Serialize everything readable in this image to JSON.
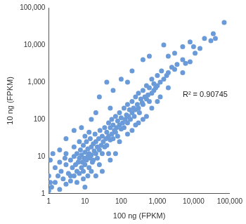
{
  "chart_data": {
    "type": "scatter",
    "x_label": "100 ng (FPKM)",
    "y_label": "10 ng (FPKM)",
    "annotation": "R² = 0.90745",
    "color": "#6a9bd8",
    "log": true,
    "grid": false,
    "xlim": [
      1,
      100000
    ],
    "ylim": [
      1,
      100000
    ],
    "xticks": [
      1,
      10,
      100,
      {
        "value": 1000,
        "label": "1,000"
      },
      {
        "value": 10000,
        "label": "10,000"
      },
      {
        "value": 100000,
        "label": "100,000"
      }
    ],
    "yticks": [
      1,
      10,
      100,
      {
        "value": 1000,
        "label": "1,000"
      },
      {
        "value": 10000,
        "label": "10,000"
      },
      {
        "value": 100000,
        "label": "100,000"
      }
    ],
    "x": [
      1.2,
      1.5,
      1.8,
      2,
      2.2,
      2.5,
      3,
      3,
      3.5,
      4,
      4,
      4.5,
      5,
      5,
      5.5,
      6,
      6,
      6.5,
      7,
      7,
      7.5,
      8,
      8,
      8.5,
      9,
      9,
      9.5,
      10,
      10,
      11,
      11,
      12,
      12,
      13,
      13,
      14,
      14,
      15,
      15,
      16,
      17,
      18,
      19,
      20,
      20,
      22,
      22,
      24,
      25,
      26,
      28,
      30,
      30,
      32,
      35,
      35,
      38,
      40,
      40,
      45,
      45,
      50,
      50,
      55,
      55,
      60,
      60,
      65,
      70,
      70,
      75,
      80,
      80,
      90,
      90,
      100,
      100,
      110,
      120,
      120,
      130,
      140,
      150,
      150,
      160,
      170,
      180,
      200,
      200,
      220,
      230,
      250,
      250,
      280,
      300,
      300,
      320,
      350,
      380,
      400,
      400,
      450,
      500,
      500,
      550,
      600,
      600,
      700,
      700,
      800,
      800,
      900,
      1000,
      1000,
      1200,
      1300,
      1500,
      1800,
      2000,
      2500,
      3000,
      3500,
      5000,
      6000,
      8000,
      10000,
      11000,
      15000,
      30000,
      35000,
      70000,
      3,
      5,
      8,
      15,
      20,
      25,
      40,
      50,
      60,
      100,
      150,
      200,
      400,
      600,
      1500,
      2000,
      3000,
      200,
      300,
      500,
      1000,
      30,
      50,
      70,
      10,
      20,
      1.1,
      1.3,
      2,
      1.5,
      1,
      1,
      1.1,
      2,
      3,
      4,
      6,
      9,
      12,
      15,
      2.8,
      5,
      7,
      10,
      13,
      17,
      25,
      45,
      90,
      150,
      250,
      400,
      700,
      1200,
      2000,
      5000,
      5000,
      8000,
      20000,
      40000
    ],
    "values": [
      1.5,
      2,
      3,
      1.3,
      4,
      2.5,
      6,
      1.8,
      3.5,
      8,
      2.2,
      5,
      3,
      10,
      6,
      4,
      12,
      7,
      3.5,
      9,
      15,
      5,
      11,
      7,
      20,
      4,
      9,
      13,
      6,
      25,
      8,
      10,
      16,
      5,
      12,
      30,
      9,
      18,
      11,
      7,
      22,
      14,
      40,
      12,
      25,
      9,
      18,
      30,
      15,
      50,
      20,
      12,
      35,
      25,
      60,
      18,
      30,
      45,
      20,
      80,
      35,
      28,
      60,
      40,
      100,
      30,
      70,
      50,
      120,
      45,
      60,
      90,
      35,
      70,
      150,
      55,
      110,
      80,
      200,
      60,
      100,
      130,
      250,
      80,
      120,
      180,
      100,
      300,
      150,
      200,
      120,
      400,
      180,
      250,
      200,
      500,
      150,
      350,
      280,
      600,
      250,
      400,
      350,
      800,
      450,
      300,
      700,
      500,
      1200,
      600,
      900,
      700,
      1500,
      800,
      1000,
      2000,
      1200,
      1500,
      1800,
      2500,
      2200,
      3000,
      4000,
      3200,
      3500,
      9000,
      6000,
      8000,
      13000,
      20000,
      40000,
      30,
      50,
      60,
      100,
      150,
      400,
      1000,
      200,
      600,
      1200,
      1000,
      2000,
      4000,
      5000,
      10000,
      5000,
      6000,
      50,
      80,
      120,
      300,
      4,
      8,
      12,
      1.5,
      3,
      8,
      12,
      15,
      5,
      1.2,
      3,
      2,
      7,
      12,
      3,
      2,
      2.5,
      3,
      4,
      9,
      18,
      25,
      35,
      45,
      8,
      6,
      12,
      25,
      40,
      70,
      100,
      200,
      400,
      700,
      1800,
      9000,
      12000,
      15000,
      15000
    ]
  }
}
